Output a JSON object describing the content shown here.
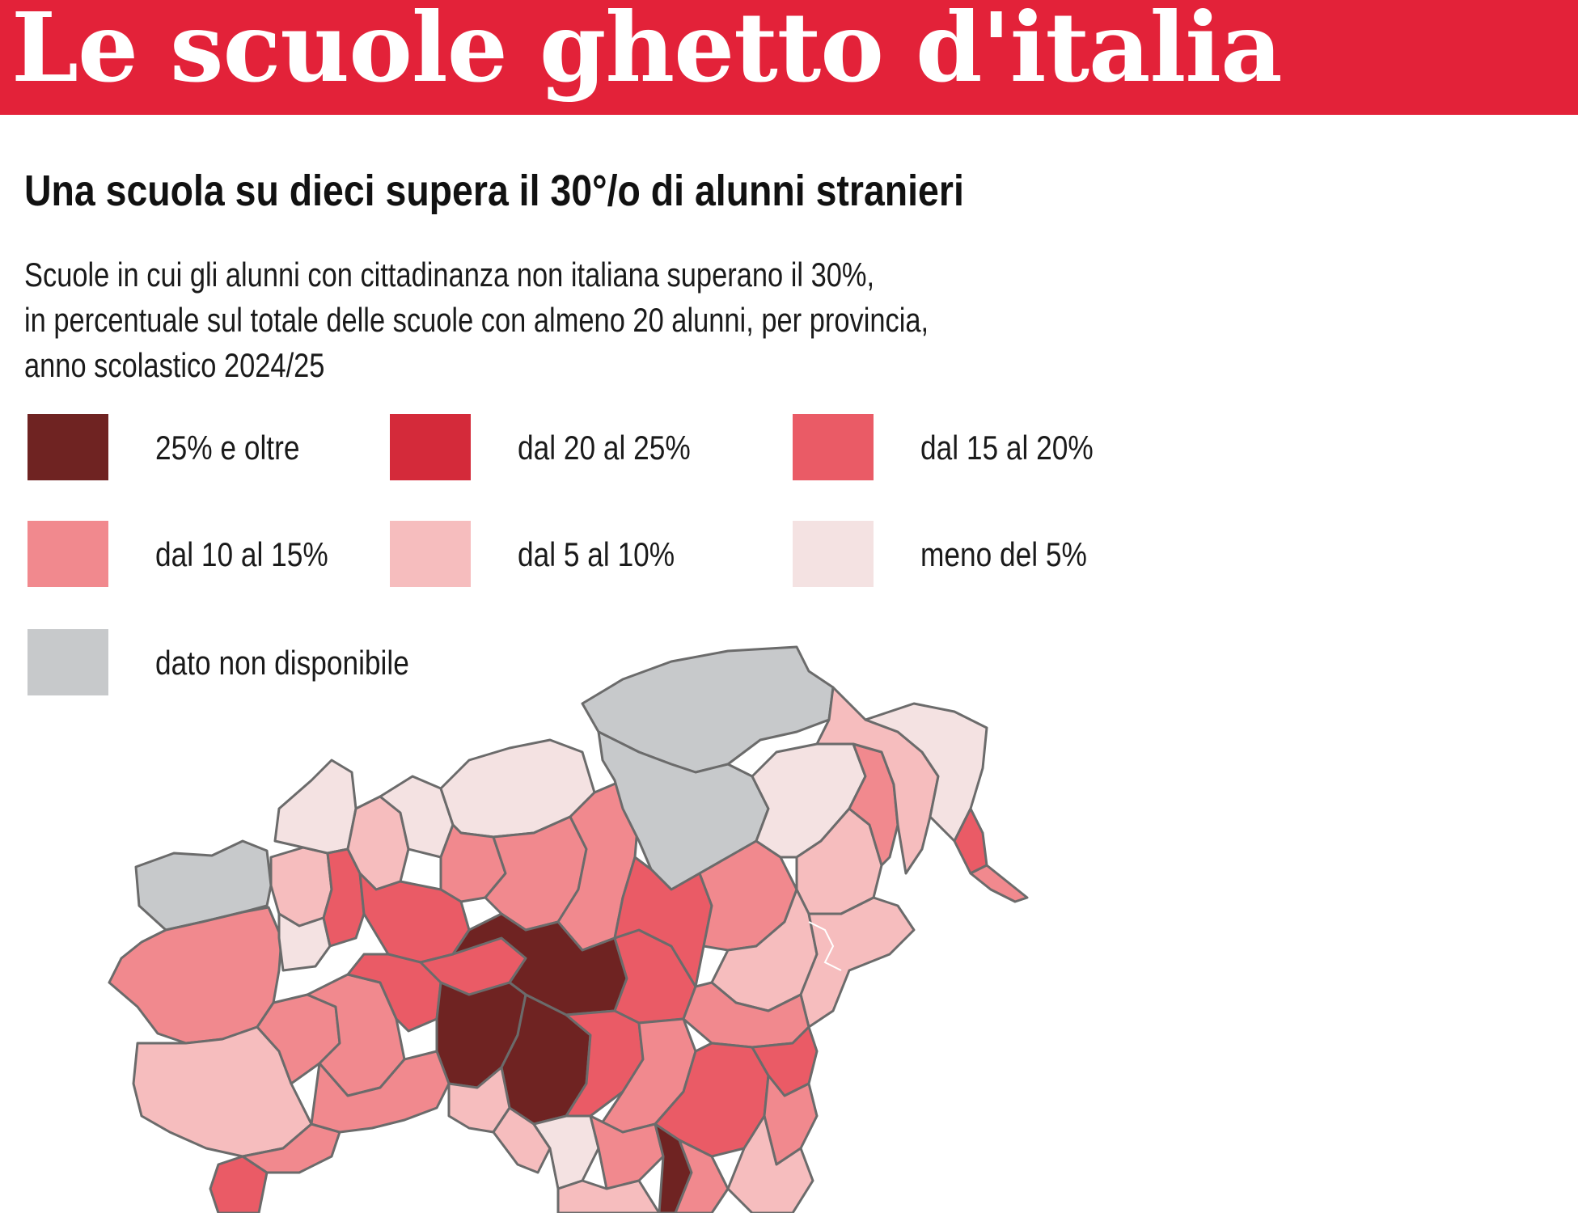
{
  "title": "Le scuole ghetto d'italia",
  "heading": "Una scuola su dieci supera il 30°/o di alunni stranieri",
  "subtitle_lines": [
    "Scuole in cui gli alunni con cittadinanza non italiana superano il 30%,",
    "in percentuale sul totale delle scuole con almeno 20 alunni, per provincia,",
    "anno scolastico 2024/25"
  ],
  "legend": [
    {
      "label": "25% e oltre",
      "color": "#6f2322"
    },
    {
      "label": "dal 20 al 25%",
      "color": "#d42a3a"
    },
    {
      "label": "dal 15 al 20%",
      "color": "#ea5b66"
    },
    {
      "label": "dal 10 al 15%",
      "color": "#f1898e"
    },
    {
      "label": "dal 5 al 10%",
      "color": "#f6bdbe"
    },
    {
      "label": "meno del 5%",
      "color": "#f4e2e2"
    },
    {
      "label": "dato non disponibile",
      "color": "#c7c9cb"
    }
  ],
  "map": {
    "region": "Northern Italy provinces",
    "border_color": "#6b6b6b"
  }
}
